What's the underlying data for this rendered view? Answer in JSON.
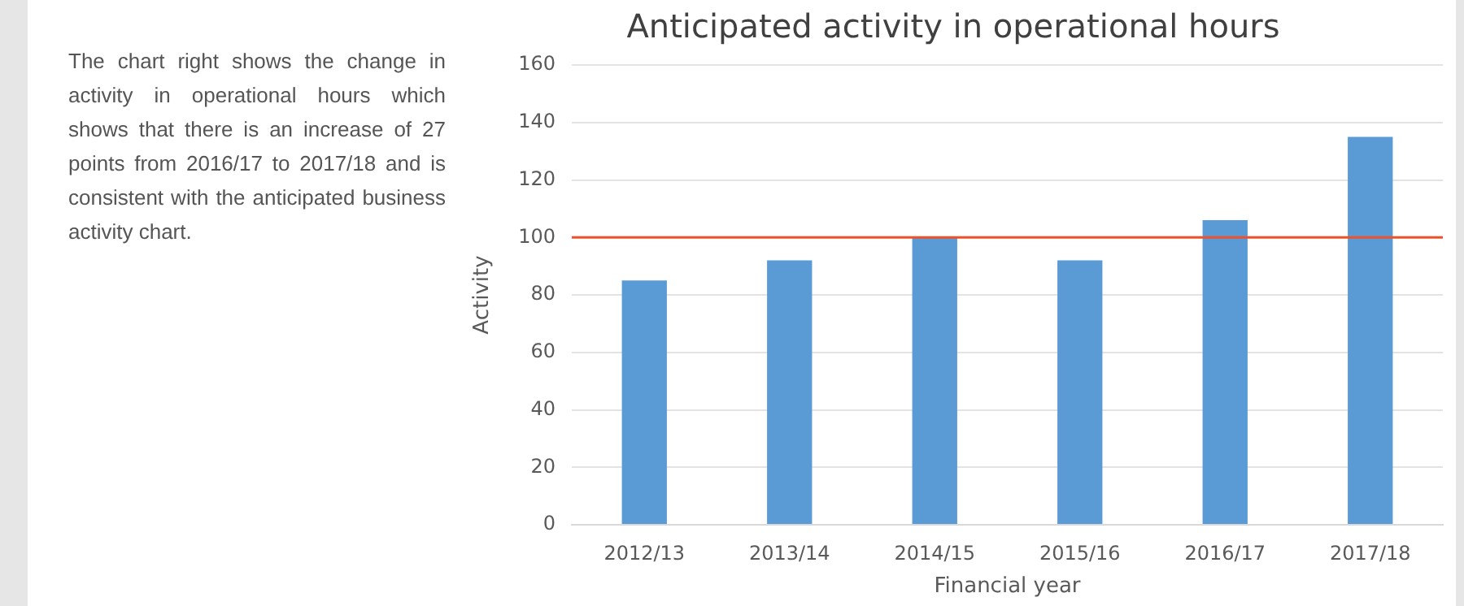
{
  "chart_data": {
    "type": "bar",
    "title": "Anticipated activity in operational hours",
    "xlabel": "Financial year",
    "ylabel": "Activity",
    "categories": [
      "2012/13",
      "2013/14",
      "2014/15",
      "2015/16",
      "2016/17",
      "2017/18"
    ],
    "values": [
      85,
      92,
      100,
      92,
      106,
      135
    ],
    "color": "#5b9bd5",
    "ylim": [
      0,
      160
    ],
    "yticks": [
      0,
      20,
      40,
      60,
      80,
      100,
      120,
      140,
      160
    ],
    "grid": "y",
    "legend": false,
    "ref_lines": [
      {
        "axis": "y",
        "value": 100,
        "color": "#f0502a"
      }
    ],
    "annotations": [
      "The chart right shows the change in activity in operational hours which shows that there is an increase of 27 points from 2016/17 to 2017/18 and is consistent with the anticipated business activity chart."
    ]
  }
}
